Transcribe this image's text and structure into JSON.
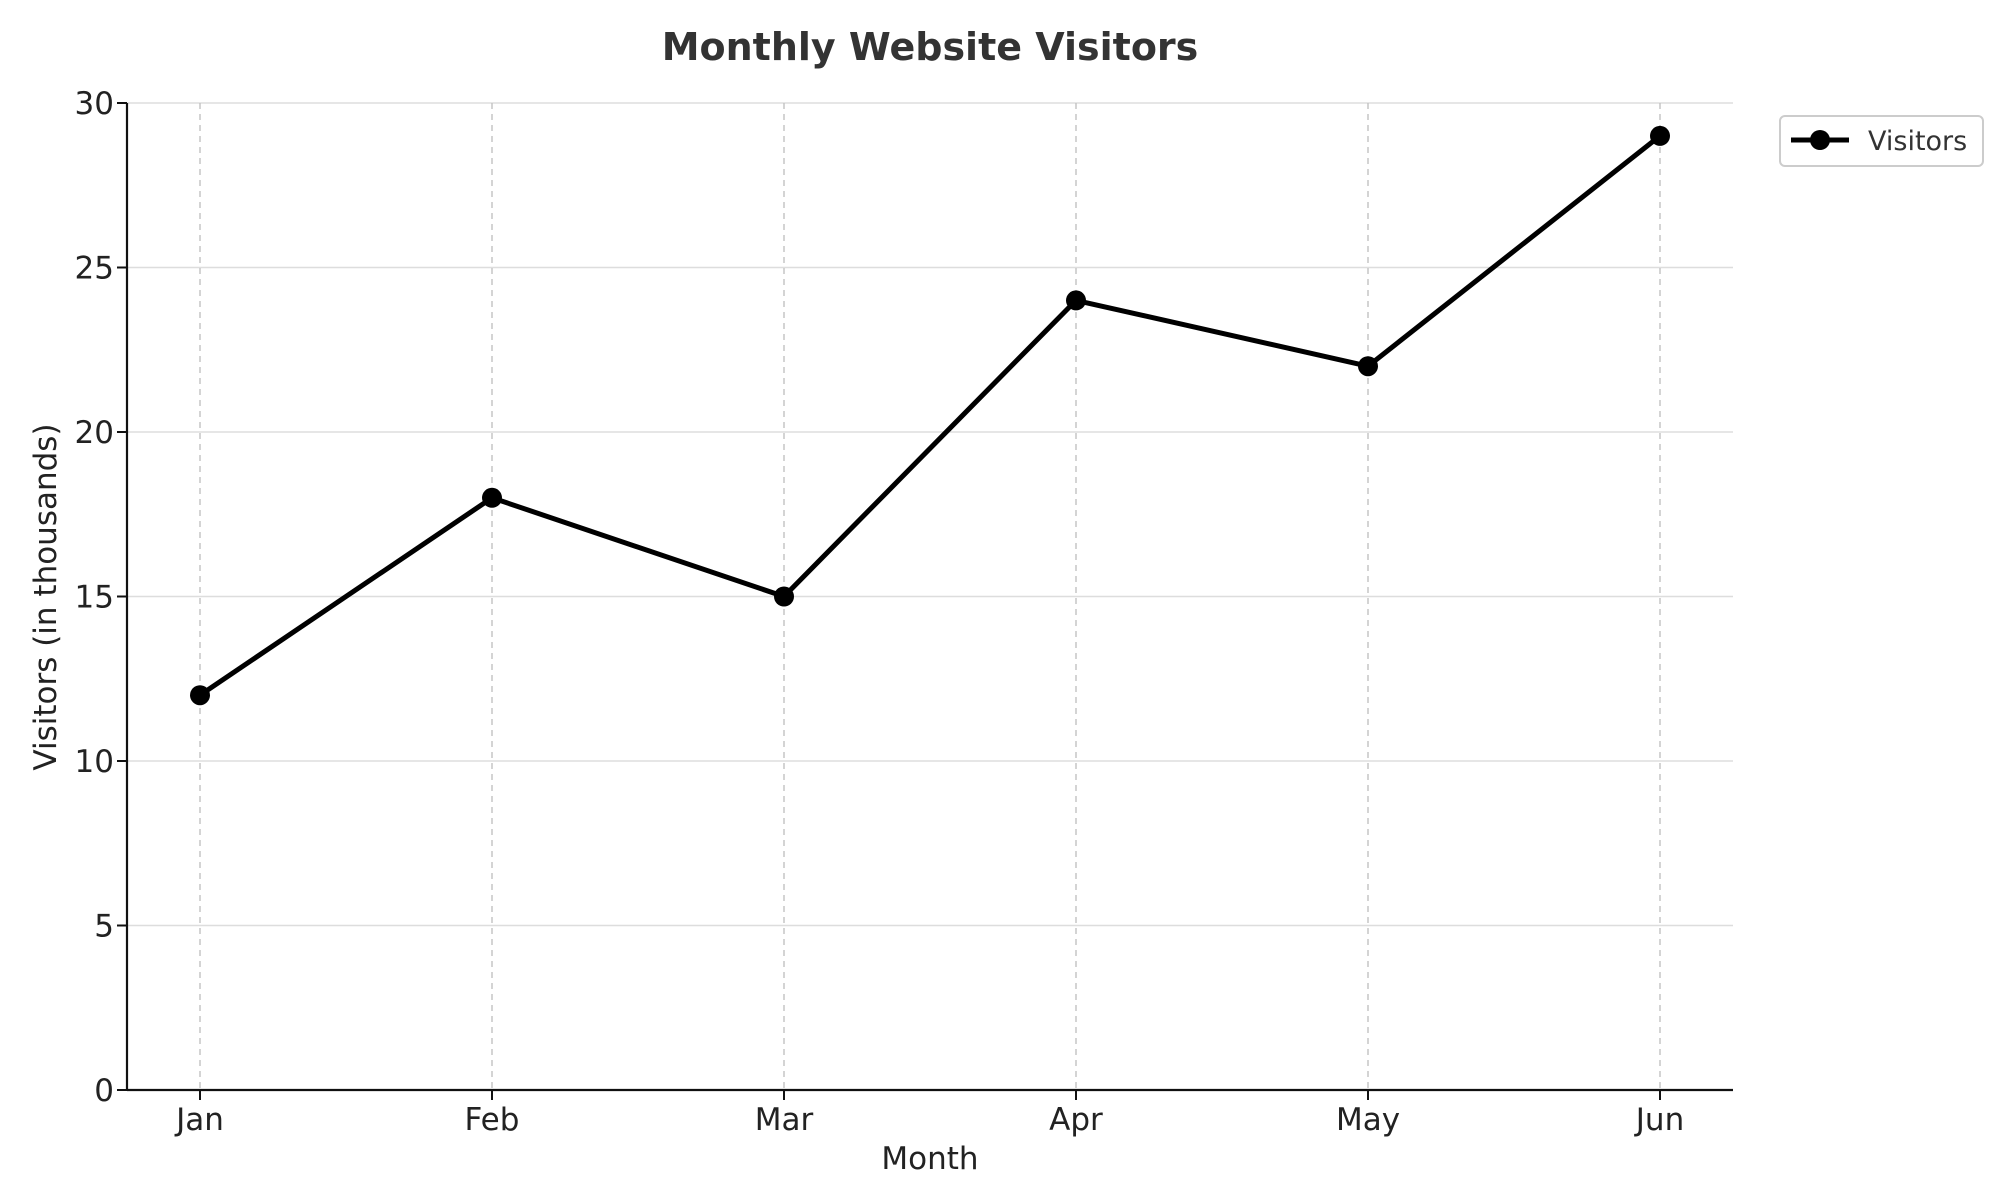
{
  "chart_data": {
    "type": "line",
    "title": "Monthly Website Visitors",
    "xlabel": "Month",
    "ylabel": "Visitors (in thousands)",
    "categories": [
      "Jan",
      "Feb",
      "Mar",
      "Apr",
      "May",
      "Jun"
    ],
    "series": [
      {
        "name": "Visitors",
        "values": [
          12,
          18,
          15,
          24,
          22,
          29
        ],
        "color": "#000000",
        "marker": "circle"
      }
    ],
    "ylim": [
      0,
      30
    ],
    "yticks": [
      "0",
      "5",
      "10",
      "15",
      "20",
      "25",
      "30"
    ],
    "grid": true,
    "legend_position": "outside-top-right"
  }
}
